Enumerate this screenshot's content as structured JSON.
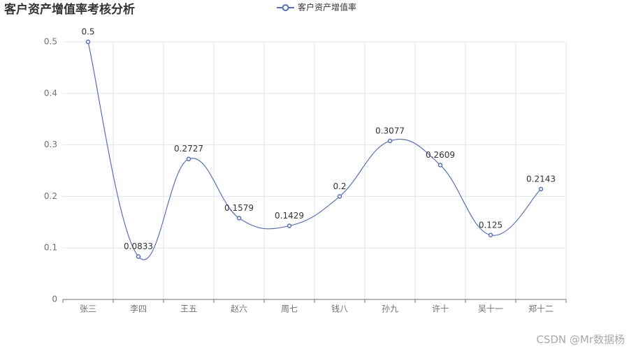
{
  "chart_data": {
    "type": "line",
    "title": "客户资产增值率考核分析",
    "categories": [
      "张三",
      "李四",
      "王五",
      "赵六",
      "周七",
      "钱八",
      "孙九",
      "许十",
      "吴十一",
      "郑十二"
    ],
    "series": [
      {
        "name": "客户资产增值率",
        "color": "#5470c6",
        "values": [
          0.5,
          0.0833,
          0.2727,
          0.1579,
          0.1429,
          0.2,
          0.3077,
          0.2609,
          0.125,
          0.2143
        ]
      }
    ],
    "ylim": [
      0,
      0.5
    ],
    "yticks": [
      0,
      0.1,
      0.2,
      0.3,
      0.4,
      0.5
    ],
    "grid": true,
    "smooth": true,
    "legend": "top",
    "watermark": "CSDN @Mr数据杨"
  }
}
